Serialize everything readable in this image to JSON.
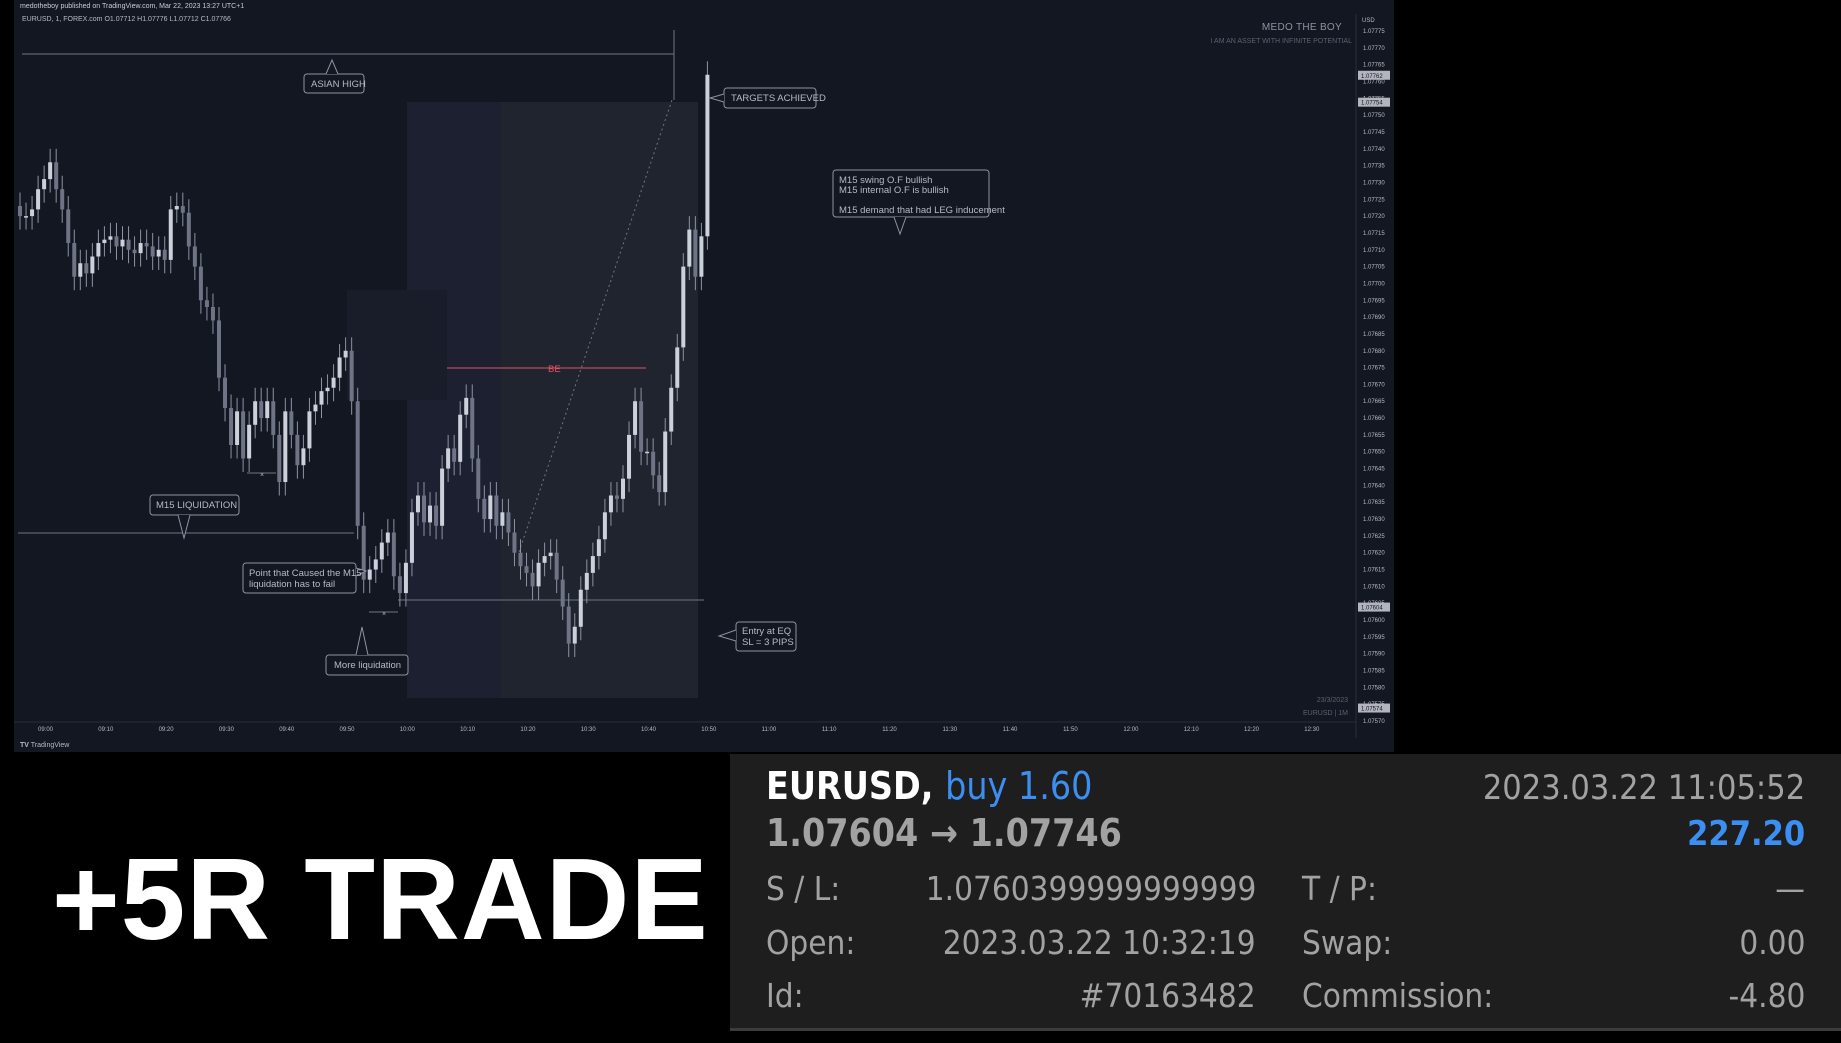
{
  "chart": {
    "header_text": "medotheboy published on TradingView.com, Mar 22, 2023 13:27 UTC+1",
    "symbol_line": "EURUSD, 1, FOREX.com  O1.07712  H1.07776  L1.07712  C1.07766",
    "footer_brand": "TradingView",
    "watermark_title": "MEDO THE BOY",
    "watermark_subtitle": "I AM AN ASSET WITH INFINITE POTENTIAL",
    "date_stamp": "23/3/2023",
    "date_stamp_sub": "EURUSD | 1M",
    "annotations": {
      "asian_high": "ASIAN HIGH",
      "targets": "TARGETS ACHIEVED",
      "swing_line1": "M15 swing O.F bullish",
      "swing_line2": "M15 internal O.F  is bullish",
      "swing_line3": "M15 demand that had LEG inducement",
      "be": "BE",
      "m15_liq": "M15 LIQUIDATION",
      "point_line1": "Point that Caused the M15",
      "point_line2": "liquidation has to fail",
      "more_liq": "More liquidation",
      "entry_line1": "Entry at EQ",
      "entry_line2": "SL = 3 PIPS"
    },
    "colors": {
      "background": "#131722",
      "candle": "#b2b5be",
      "be_line": "#e05263",
      "annotation_border": "#8d93a3"
    }
  },
  "chart_data": {
    "type": "candlestick",
    "currency": "USD",
    "x_ticks": [
      "09:00",
      "09:10",
      "09:20",
      "09:30",
      "09:40",
      "09:50",
      "10:00",
      "10:10",
      "10:20",
      "10:30",
      "10:40",
      "10:50",
      "11:00",
      "11:10",
      "11:20",
      "11:30",
      "11:40",
      "11:50",
      "12:00",
      "12:10",
      "12:20",
      "12:30"
    ],
    "y_ticks": [
      "1.07775",
      "1.07770",
      "1.07765",
      "1.07760",
      "1.07755",
      "1.07750",
      "1.07745",
      "1.07740",
      "1.07735",
      "1.07730",
      "1.07725",
      "1.07720",
      "1.07715",
      "1.07710",
      "1.07705",
      "1.07700",
      "1.07695",
      "1.07690",
      "1.07685",
      "1.07680",
      "1.07675",
      "1.07670",
      "1.07665",
      "1.07660",
      "1.07655",
      "1.07650",
      "1.07645",
      "1.07640",
      "1.07635",
      "1.07630",
      "1.07625",
      "1.07620",
      "1.07615",
      "1.07610",
      "1.07605",
      "1.07600",
      "1.07595",
      "1.07590",
      "1.07585",
      "1.07580",
      "1.07575",
      "1.07570"
    ],
    "y_range": [
      1.0757,
      1.07775
    ],
    "price_labels": [
      "1.07762",
      "1.07754",
      "1.07604",
      "1.07574"
    ],
    "close_series": [
      1.0772,
      1.0772,
      1.07722,
      1.07728,
      1.07731,
      1.07736,
      1.07728,
      1.07722,
      1.07712,
      1.07702,
      1.07706,
      1.07703,
      1.07708,
      1.07712,
      1.07713,
      1.07714,
      1.07711,
      1.07713,
      1.0771,
      1.07709,
      1.07712,
      1.07711,
      1.07708,
      1.0771,
      1.07707,
      1.07722,
      1.07723,
      1.07721,
      1.07711,
      1.07705,
      1.07695,
      1.07693,
      1.07689,
      1.07672,
      1.07663,
      1.07652,
      1.07662,
      1.07648,
      1.07658,
      1.07665,
      1.0766,
      1.07665,
      1.07655,
      1.07641,
      1.07662,
      1.07655,
      1.07646,
      1.07651,
      1.07662,
      1.07664,
      1.07668,
      1.07669,
      1.07672,
      1.07678,
      1.0768,
      1.07665,
      1.07628,
      1.07612,
      1.07615,
      1.07618,
      1.07623,
      1.07626,
      1.07613,
      1.07608,
      1.07617,
      1.07632,
      1.07637,
      1.07629,
      1.07634,
      1.07628,
      1.07645,
      1.07651,
      1.07647,
      1.07661,
      1.07666,
      1.07648,
      1.07636,
      1.0763,
      1.07637,
      1.07628,
      1.07632,
      1.07626,
      1.0762,
      1.07616,
      1.07614,
      1.0761,
      1.07617,
      1.07619,
      1.0762,
      1.07612,
      1.07604,
      1.07593,
      1.07598,
      1.07609,
      1.07614,
      1.07619,
      1.07624,
      1.07632,
      1.07637,
      1.07636,
      1.07642,
      1.07655,
      1.07665,
      1.0765,
      1.0765,
      1.07643,
      1.07638,
      1.07656,
      1.07669,
      1.07681,
      1.07705,
      1.07716,
      1.07702,
      1.07714,
      1.07762
    ]
  },
  "headline": "+5R TRADE",
  "position": {
    "symbol": "EURUSD,",
    "type": "buy 1.60",
    "prices": "1.07604 → 1.07746",
    "datetime": "2023.03.22 11:05:52",
    "profit": "227.20",
    "sl_label": "S / L:",
    "sl_value": "1.0760399999999999",
    "tp_label": "T / P:",
    "tp_value": "—",
    "open_label": "Open:",
    "open_value": "2023.03.22 10:32:19",
    "swap_label": "Swap:",
    "swap_value": "0.00",
    "id_label": "Id:",
    "id_value": "#70163482",
    "commission_label": "Commission:",
    "commission_value": "-4.80",
    "colors": {
      "panel": "#1e1e1e",
      "accent": "#3c8ff2",
      "text": "#a2a2a2"
    }
  }
}
